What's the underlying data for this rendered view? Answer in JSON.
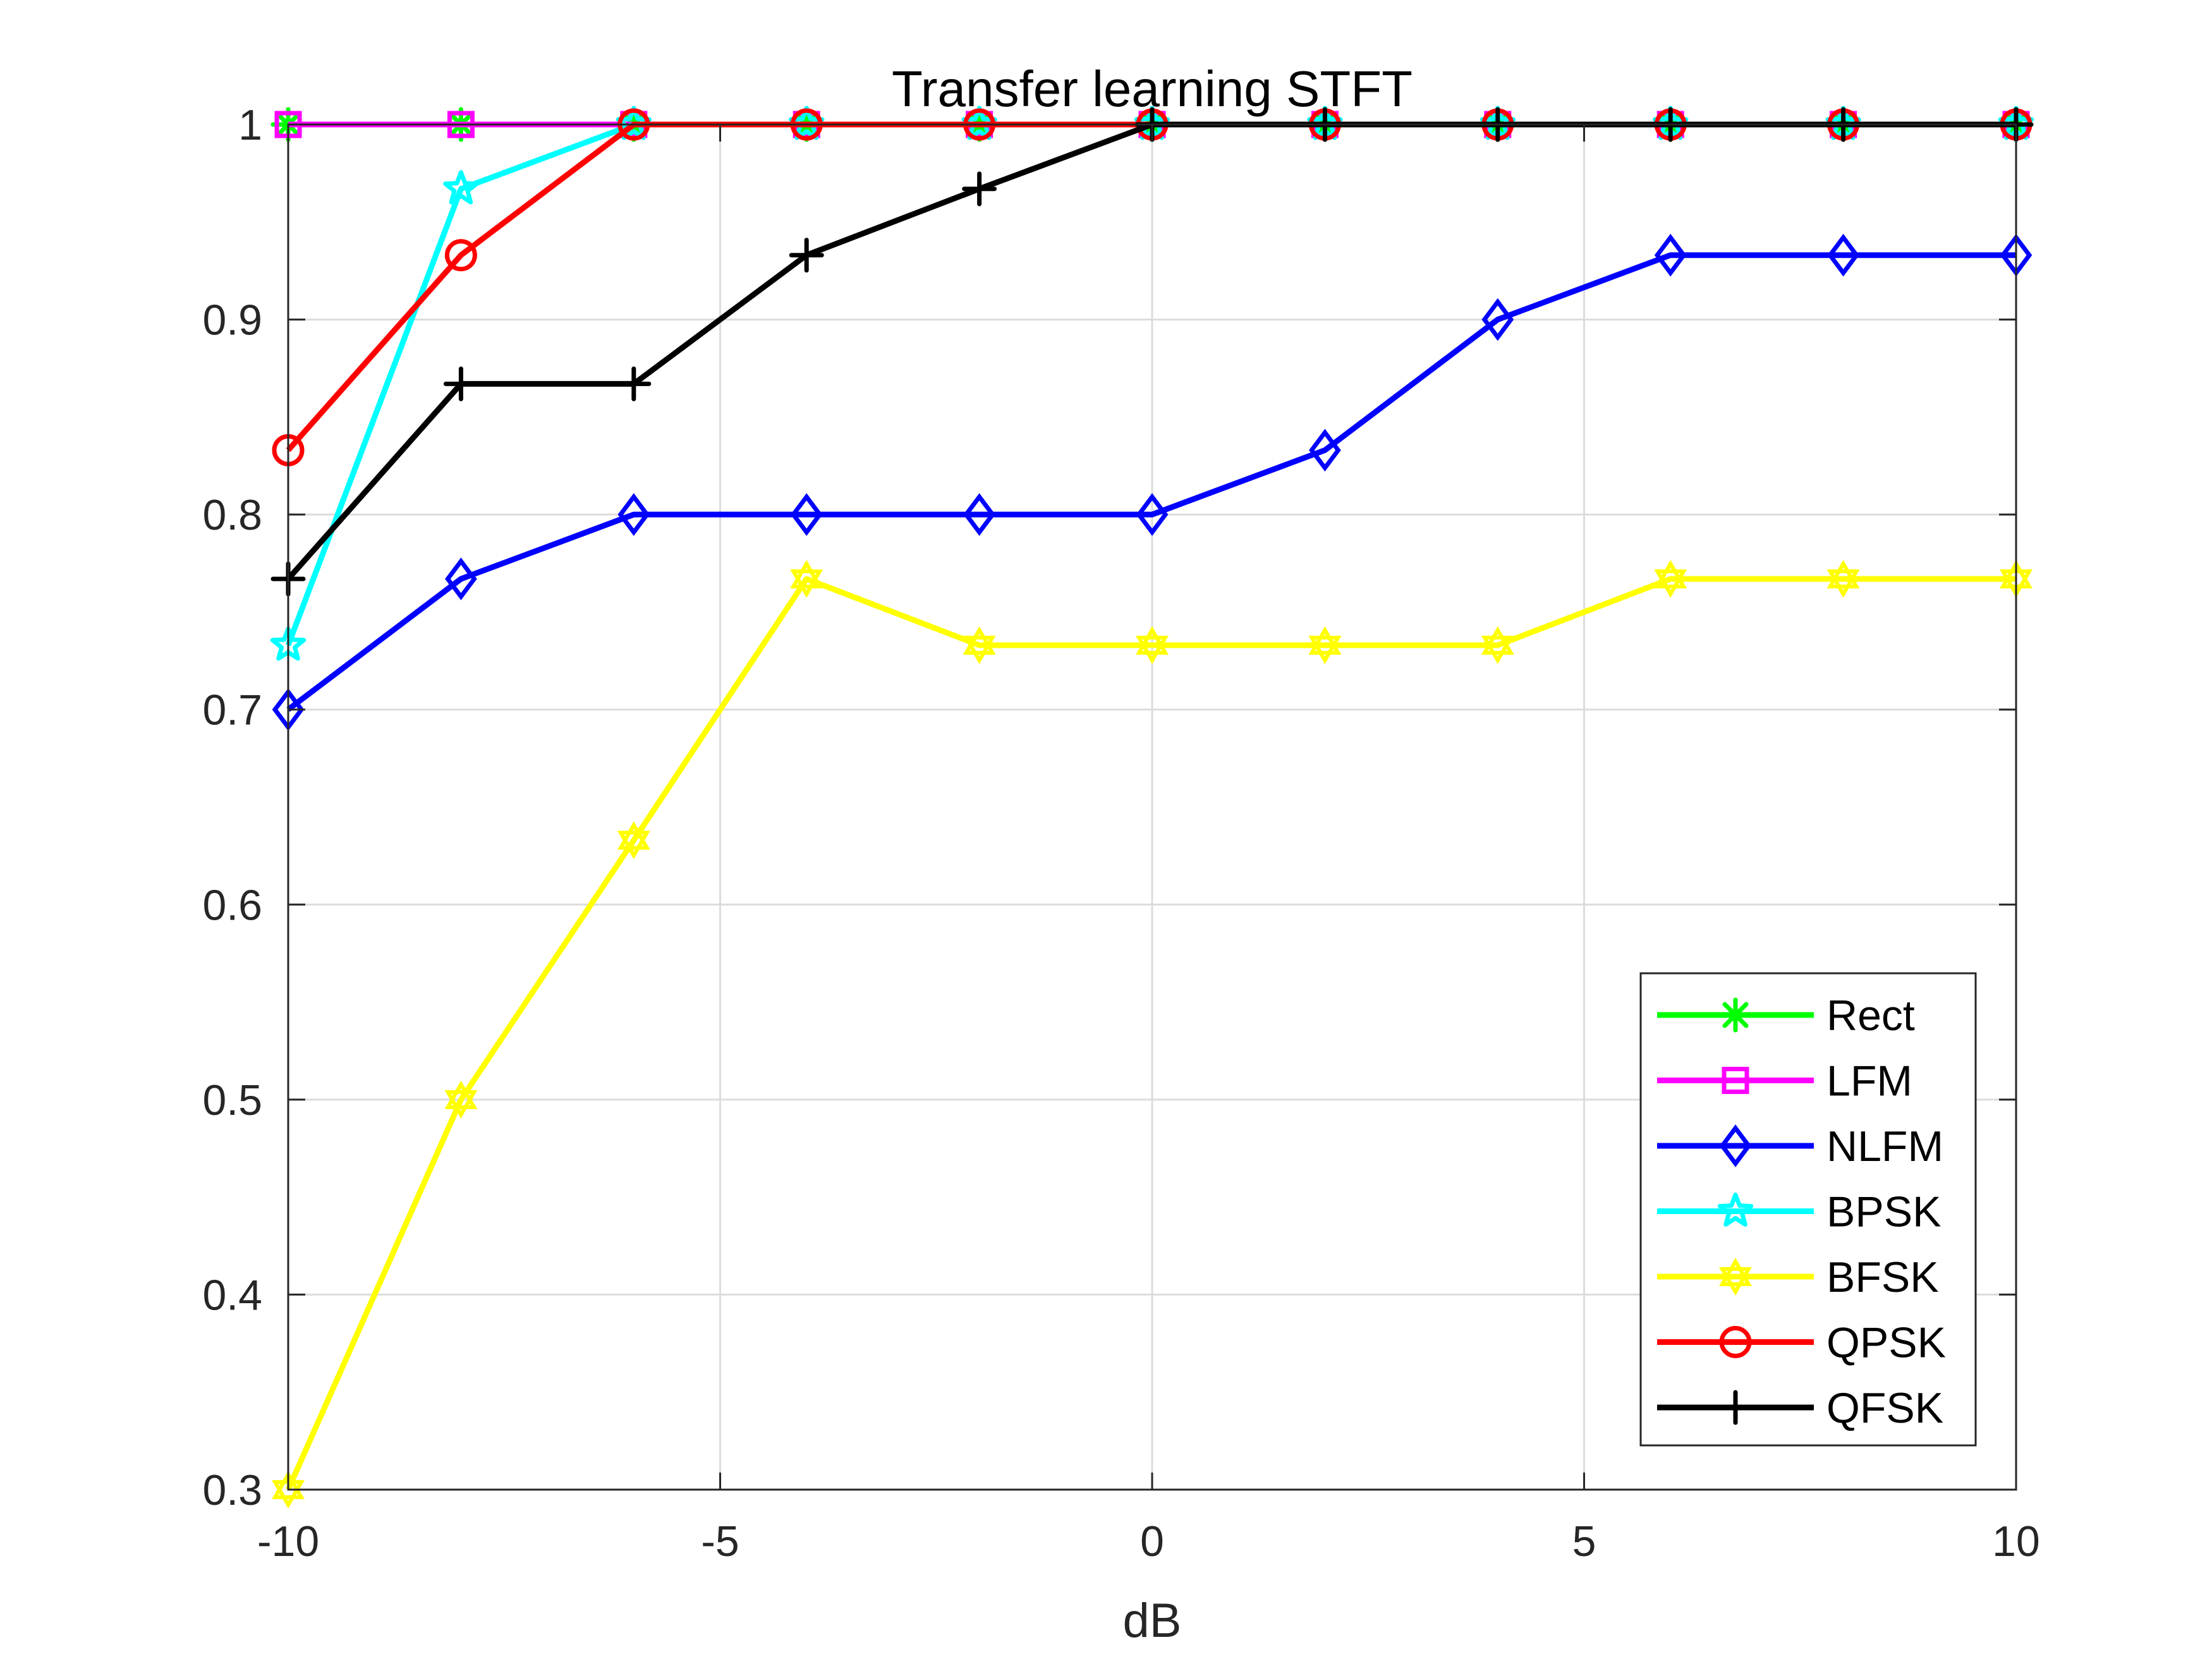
{
  "chart_data": {
    "type": "line",
    "title": "Transfer learning STFT",
    "xlabel": "dB",
    "ylabel": "",
    "xlim": [
      -10,
      10
    ],
    "ylim": [
      0.3,
      1
    ],
    "xticks": [
      -10,
      -5,
      0,
      5,
      10
    ],
    "xtick_labels": [
      "-10",
      "-5",
      "0",
      "5",
      "10"
    ],
    "yticks": [
      0.3,
      0.4,
      0.5,
      0.6,
      0.7,
      0.8,
      0.9,
      1
    ],
    "ytick_labels": [
      "0.3",
      "0.4",
      "0.5",
      "0.6",
      "0.7",
      "0.8",
      "0.9",
      "1"
    ],
    "grid": true,
    "legend_position": "bottom-right",
    "x": [
      -10,
      -8,
      -6,
      -4,
      -2,
      0,
      2,
      4,
      6,
      8,
      10
    ],
    "series": [
      {
        "name": "Rect",
        "color": "#00ff00",
        "marker": "asterisk",
        "values": [
          1,
          1,
          1,
          1,
          1,
          1,
          1,
          1,
          1,
          1,
          1
        ]
      },
      {
        "name": "LFM",
        "color": "#ff00ff",
        "marker": "square",
        "values": [
          1,
          1,
          1,
          1,
          1,
          1,
          1,
          1,
          1,
          1,
          1
        ]
      },
      {
        "name": "NLFM",
        "color": "#0000ff",
        "marker": "diamond",
        "values": [
          0.7,
          0.767,
          0.8,
          0.8,
          0.8,
          0.8,
          0.833,
          0.9,
          0.933,
          0.933,
          0.933
        ]
      },
      {
        "name": "BPSK",
        "color": "#00ffff",
        "marker": "star",
        "values": [
          0.733,
          0.967,
          1,
          1,
          1,
          1,
          1,
          1,
          1,
          1,
          1
        ]
      },
      {
        "name": "BFSK",
        "color": "#ffff00",
        "marker": "hexagram",
        "values": [
          0.3,
          0.5,
          0.633,
          0.767,
          0.733,
          0.733,
          0.733,
          0.733,
          0.767,
          0.767,
          0.767
        ]
      },
      {
        "name": "QPSK",
        "color": "#ff0000",
        "marker": "circle",
        "values": [
          0.833,
          0.933,
          1,
          1,
          1,
          1,
          1,
          1,
          1,
          1,
          1
        ]
      },
      {
        "name": "QFSK",
        "color": "#000000",
        "marker": "plus",
        "values": [
          0.767,
          0.867,
          0.867,
          0.933,
          0.967,
          1,
          1,
          1,
          1,
          1,
          1
        ]
      }
    ]
  }
}
